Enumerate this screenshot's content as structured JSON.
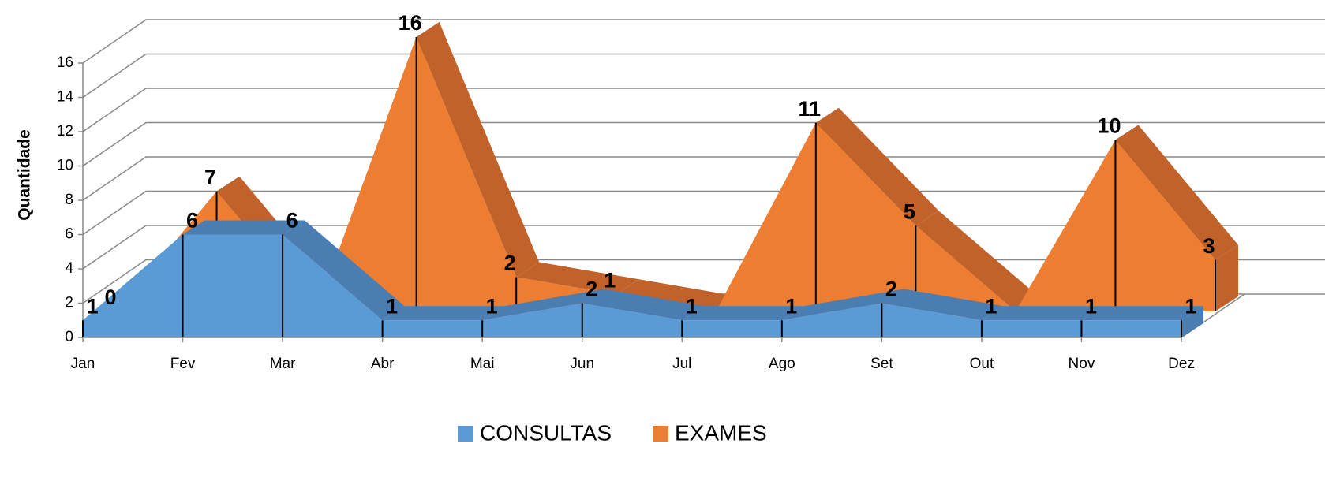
{
  "chart_data": {
    "type": "area3d",
    "y_label": "Quantidade",
    "categories": [
      "Jan",
      "Fev",
      "Mar",
      "Abr",
      "Mai",
      "Jun",
      "Jul",
      "Ago",
      "Set",
      "Out",
      "Nov",
      "Dez"
    ],
    "series": [
      {
        "name": "CONSULTAS",
        "color": "#5b9bd5",
        "side_color": "#4a7eb3",
        "values": [
          1,
          6,
          6,
          1,
          1,
          2,
          1,
          1,
          2,
          1,
          1,
          1
        ]
      },
      {
        "name": "EXAMES",
        "color": "#ed7d31",
        "side_color": "#c0622a",
        "values": [
          0,
          7,
          0,
          16,
          2,
          1,
          0,
          11,
          5,
          0,
          10,
          3
        ],
        "value_labels": [
          "0",
          "7",
          null,
          "16",
          "2",
          "1",
          null,
          "11",
          "5",
          null,
          "10",
          "3"
        ]
      }
    ],
    "ylim": [
      0,
      16
    ],
    "yticks": [
      0,
      2,
      4,
      6,
      8,
      10,
      12,
      14,
      16
    ],
    "grid": true,
    "legend": "bottom"
  }
}
